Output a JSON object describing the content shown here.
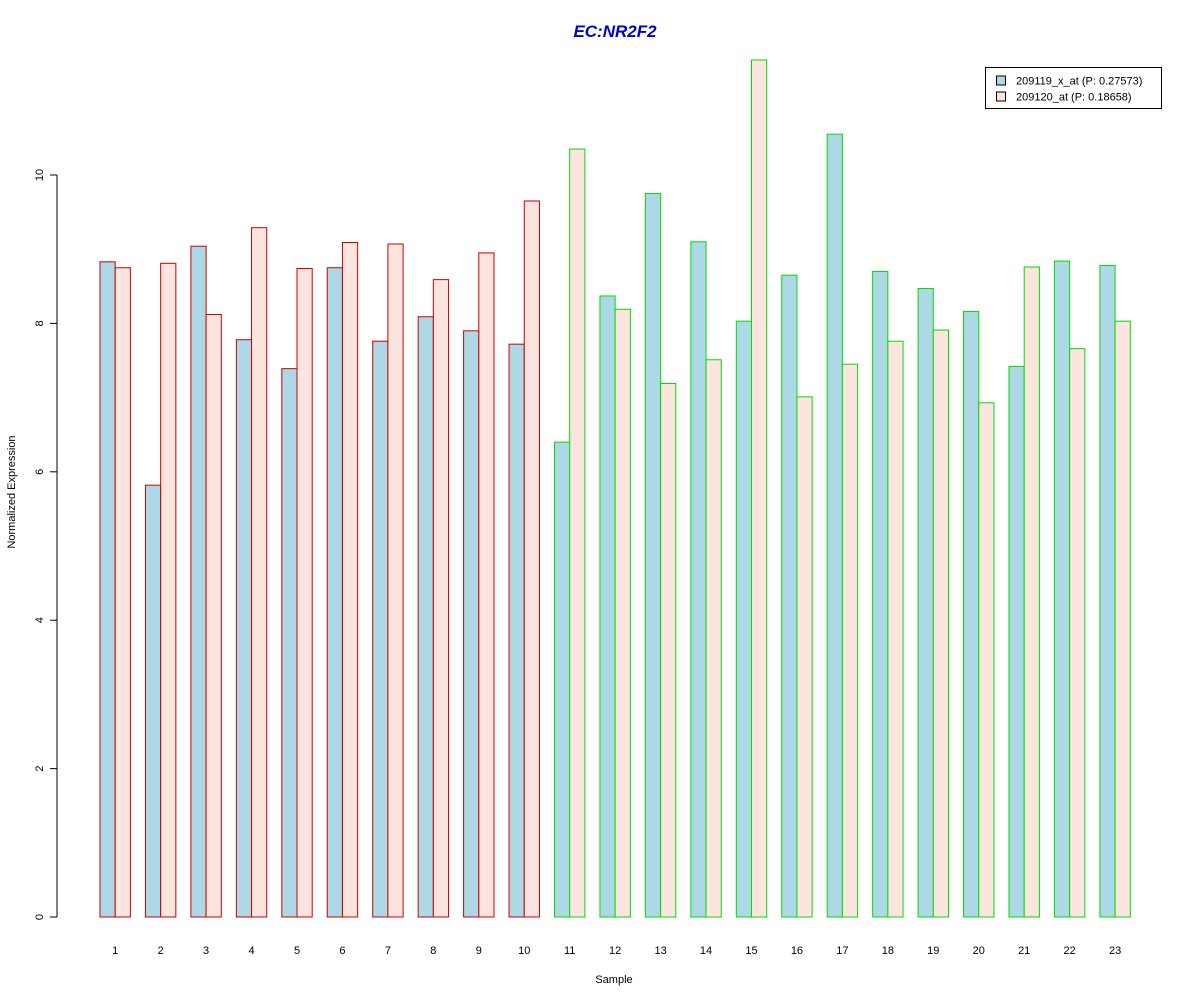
{
  "chart_data": {
    "type": "bar",
    "title": "EC:NR2F2",
    "xlabel": "Sample",
    "ylabel": "Normalized Expression",
    "ylim": [
      0,
      11.6
    ],
    "yticks": [
      0,
      2,
      4,
      6,
      8,
      10
    ],
    "grid": false,
    "legend_position": "top-right",
    "categories": [
      "1",
      "2",
      "3",
      "4",
      "5",
      "6",
      "7",
      "8",
      "9",
      "10",
      "11",
      "12",
      "13",
      "14",
      "15",
      "16",
      "17",
      "18",
      "19",
      "20",
      "21",
      "22",
      "23"
    ],
    "group_border_colors": [
      "#cc0000",
      "#cc0000",
      "#cc0000",
      "#cc0000",
      "#cc0000",
      "#cc0000",
      "#cc0000",
      "#cc0000",
      "#cc0000",
      "#cc0000",
      "#00dd00",
      "#00dd00",
      "#00dd00",
      "#00dd00",
      "#00dd00",
      "#00dd00",
      "#00dd00",
      "#00dd00",
      "#00dd00",
      "#00dd00",
      "#00dd00",
      "#00dd00",
      "#00dd00"
    ],
    "series": [
      {
        "name": "209119_x_at (P: 0.27573)",
        "fill": "#add8e6",
        "values": [
          8.83,
          5.82,
          9.04,
          7.78,
          7.39,
          8.75,
          7.76,
          8.09,
          7.9,
          7.72,
          6.4,
          8.37,
          9.75,
          9.1,
          8.03,
          8.65,
          10.55,
          8.7,
          8.47,
          8.16,
          7.42,
          8.84,
          8.78
        ]
      },
      {
        "name": "209120_at (P: 0.18658)",
        "fill": "#fbe5de",
        "values": [
          8.75,
          8.81,
          8.12,
          9.29,
          8.74,
          9.09,
          9.07,
          8.59,
          8.95,
          9.65,
          10.35,
          8.19,
          7.19,
          7.51,
          11.55,
          7.01,
          7.45,
          7.76,
          7.91,
          6.93,
          8.76,
          7.66,
          8.03
        ]
      }
    ]
  },
  "colors": {
    "title": "#0000cc",
    "axis": "#000000",
    "background": "#ffffff"
  }
}
